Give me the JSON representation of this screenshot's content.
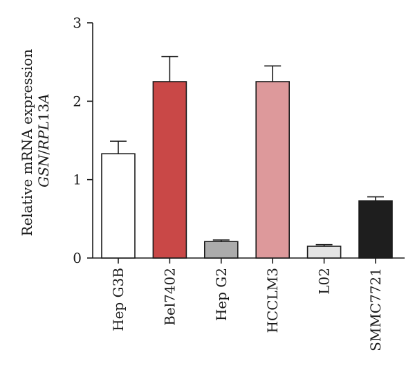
{
  "chart_data": {
    "type": "bar",
    "categories": [
      "Hep G3B",
      "Bel7402",
      "Hep G2",
      "HCCLM3",
      "L02",
      "SMMC7721"
    ],
    "values": [
      1.33,
      2.25,
      0.21,
      2.25,
      0.15,
      0.73
    ],
    "errors": [
      0.16,
      0.32,
      0.02,
      0.2,
      0.02,
      0.05
    ],
    "colors": [
      "#ffffff",
      "#c94847",
      "#ababab",
      "#dd999b",
      "#e4e4e4",
      "#1e1e1e"
    ],
    "ylabel_line1": "Relative mRNA expression",
    "ylabel_line2_italic_a": "GSN",
    "ylabel_line2_sep": "/",
    "ylabel_line2_italic_b": "RPL",
    "ylabel_line2_tail": "13",
    "ylabel_line2_italic_c": "A",
    "ylim": [
      0,
      3
    ],
    "yticks": [
      "0",
      "1",
      "2",
      "3"
    ],
    "grid": false,
    "legend": "none"
  }
}
